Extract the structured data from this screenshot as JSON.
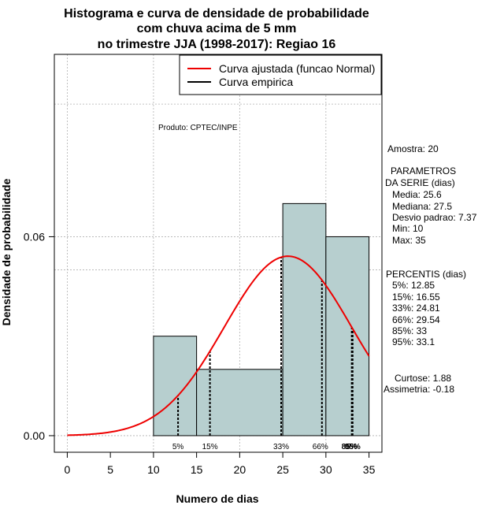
{
  "chart_data": {
    "type": "bar",
    "title_lines": [
      "Histograma e curva de densidade de probabilidade",
      "com chuva acima de 5 mm",
      "no trimestre JJA (1998-2017): Regiao 16"
    ],
    "xlabel": "Numero de dias",
    "ylabel": "Densidade de probabilidade",
    "xlim": [
      -1.5,
      36.5
    ],
    "ylim": [
      -0.005,
      0.115
    ],
    "x_ticks": [
      0,
      5,
      10,
      15,
      20,
      25,
      30,
      35
    ],
    "y_ticks": [
      0.0,
      0.06
    ],
    "y_tick_labels": [
      "0.00",
      "0.06"
    ],
    "grid_x": [
      0,
      10,
      20,
      30
    ],
    "grid_y": [
      0.05,
      0.1
    ],
    "bins": [
      {
        "from": 10,
        "to": 15,
        "density": 0.03
      },
      {
        "from": 15,
        "to": 25,
        "density": 0.02
      },
      {
        "from": 25,
        "to": 30,
        "density": 0.07
      },
      {
        "from": 30,
        "to": 35,
        "density": 0.06
      }
    ],
    "fit_curve": {
      "name": "Curva ajustada (funcao Normal)",
      "mean": 25.6,
      "sd": 7.37,
      "x_range": [
        0,
        35
      ],
      "color": "#ee0000"
    },
    "empirical_curve": {
      "name": "Curva empirica",
      "color": "#000000"
    },
    "percentile_markers": [
      {
        "label": "5%",
        "x": 12.85
      },
      {
        "label": "15%",
        "x": 16.55
      },
      {
        "label": "33%",
        "x": 24.81
      },
      {
        "label": "66%",
        "x": 29.54
      },
      {
        "label": "85%",
        "x": 33
      },
      {
        "label": "95%",
        "x": 33.1
      }
    ],
    "legend": [
      "Curva ajustada (funcao Normal)",
      "Curva empirica"
    ],
    "legend_position": "top-right",
    "bar_color": "#b7cfcf"
  },
  "annotations": {
    "product": "Produto: CPTEC/INPE",
    "amostra": "Amostra: 20",
    "parametros_title_1": "PARAMETROS",
    "parametros_title_2": "DA SERIE (dias)",
    "media": "Media: 25.6",
    "mediana": "Mediana: 27.5",
    "desvio": "Desvio padrao: 7.37",
    "min": "Min: 10",
    "max": "Max: 35",
    "percentis_title": "PERCENTIS (dias)",
    "p5": "5%: 12.85",
    "p15": "15%: 16.55",
    "p33": "33%: 24.81",
    "p66": "66%: 29.54",
    "p85": "85%: 33",
    "p95": "95%: 33.1",
    "curtose": "Curtose: 1.88",
    "assimetria": "Assimetria: -0.18"
  }
}
